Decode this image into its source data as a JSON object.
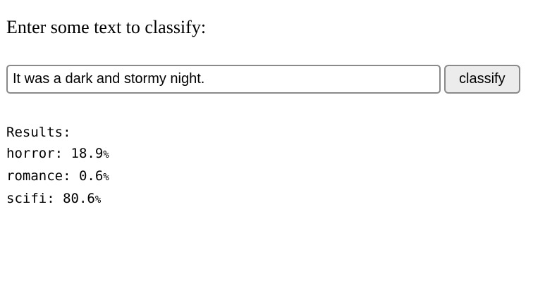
{
  "page": {
    "heading": "Enter some text to classify:"
  },
  "form": {
    "input_value": "It was a dark and stormy night.",
    "button_label": "classify"
  },
  "results": {
    "title": "Results:",
    "separator": ": ",
    "unit": "%",
    "items": [
      {
        "label": "horror",
        "value": "18.9"
      },
      {
        "label": "romance",
        "value": "0.6"
      },
      {
        "label": "scifi",
        "value": "80.6"
      }
    ]
  },
  "colors": {
    "background": "#ffffff",
    "text": "#000000",
    "button-bg": "#ececec",
    "control-border": "#8a8a8a"
  }
}
